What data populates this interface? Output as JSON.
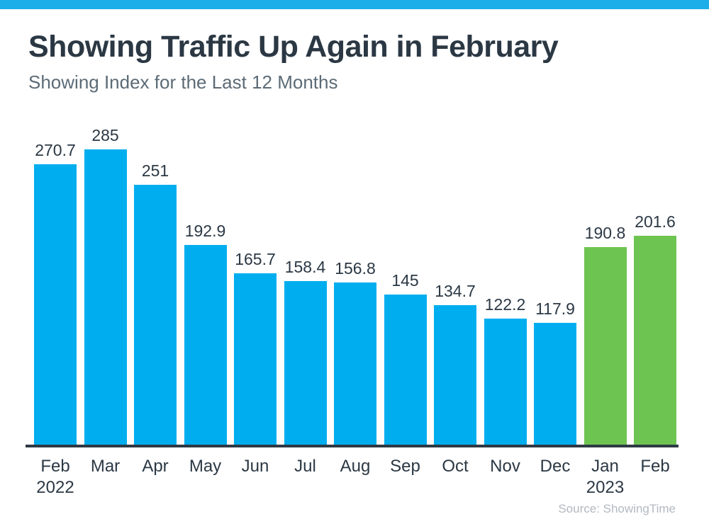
{
  "page": {
    "title": "Showing Traffic Up Again in February",
    "subtitle": "Showing Index for the Last 12 Months",
    "source": "Source: ShowingTime"
  },
  "colors": {
    "accent_stripe": "#1CAEE9",
    "bar_blue": "#00AEEF",
    "bar_green": "#6EC451",
    "text_dark": "#2B3844",
    "subtitle_text": "#5C6B76",
    "axis": "#2E3A45",
    "source_text": "#B3B9BF"
  },
  "chart_data": {
    "type": "bar",
    "title": "Showing Traffic Up Again in February",
    "subtitle": "Showing Index for the Last 12 Months",
    "categories": [
      "Feb",
      "Mar",
      "Apr",
      "May",
      "Jun",
      "Jul",
      "Aug",
      "Sep",
      "Oct",
      "Nov",
      "Dec",
      "Jan",
      "Feb"
    ],
    "year_labels": [
      {
        "index": 0,
        "label": "2022"
      },
      {
        "index": 11,
        "label": "2023"
      }
    ],
    "values": [
      270.7,
      285,
      251,
      192.9,
      165.7,
      158.4,
      156.8,
      145,
      134.7,
      122.2,
      117.9,
      190.8,
      201.6
    ],
    "data_labels": [
      "270.7",
      "285",
      "251",
      "192.9",
      "165.7",
      "158.4",
      "156.8",
      "145",
      "134.7",
      "122.2",
      "117.9",
      "190.8",
      "201.6"
    ],
    "bar_colors_by_index": {
      "default": "#00AEEF",
      "11": "#6EC451",
      "12": "#6EC451"
    },
    "xlabel": "",
    "ylabel": "",
    "ylim": [
      0,
      285
    ],
    "grid": false,
    "legend": false,
    "source": "Source: ShowingTime"
  }
}
